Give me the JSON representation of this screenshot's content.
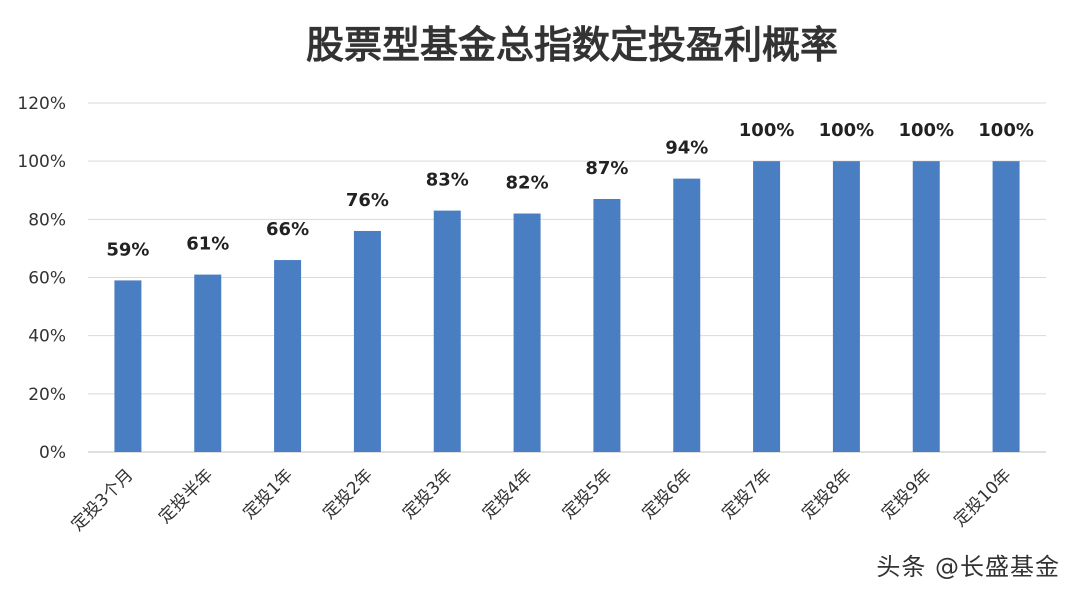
{
  "watermark": "头条 @长盛基金",
  "colors": {
    "bar": "#4A7EC2"
  },
  "chart_data": {
    "type": "bar",
    "title": "股票型基金总指数定投盈利概率",
    "categories": [
      "定投3个月",
      "定投半年",
      "定投1年",
      "定投2年",
      "定投3年",
      "定投4年",
      "定投5年",
      "定投6年",
      "定投7年",
      "定投8年",
      "定投9年",
      "定投10年"
    ],
    "values": [
      59,
      61,
      66,
      76,
      83,
      82,
      87,
      94,
      100,
      100,
      100,
      100
    ],
    "data_labels": [
      "59%",
      "61%",
      "66%",
      "76%",
      "83%",
      "82%",
      "87%",
      "94%",
      "100%",
      "100%",
      "100%",
      "100%"
    ],
    "yticks": [
      0,
      20,
      40,
      60,
      80,
      100,
      120
    ],
    "ytick_labels": [
      "0%",
      "20%",
      "40%",
      "60%",
      "80%",
      "100%",
      "120%"
    ],
    "ylim": [
      0,
      120
    ],
    "xlabel": "",
    "ylabel": "",
    "grid": true,
    "legend": "none"
  }
}
